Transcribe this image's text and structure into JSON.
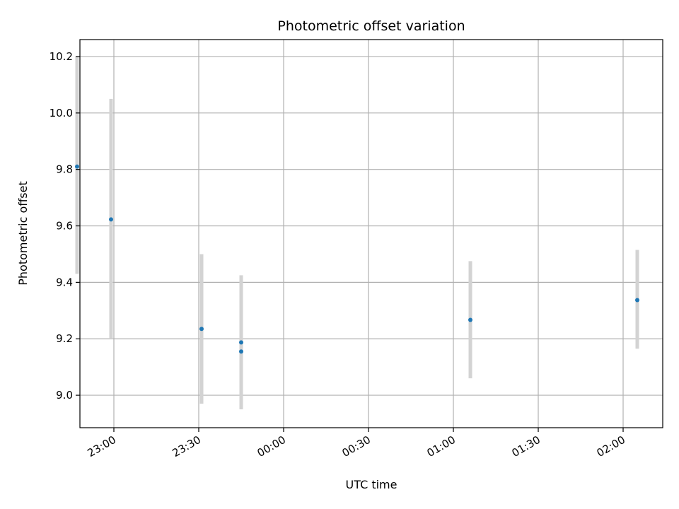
{
  "chart_data": {
    "type": "scatter",
    "title": "Photometric offset variation",
    "xlabel": "UTC time",
    "ylabel": "Photometric offset",
    "x_axis_kind": "time",
    "xlim": [
      "22:48",
      "02:14"
    ],
    "ylim": [
      8.885,
      10.26
    ],
    "x_ticks": [
      "23:00",
      "23:30",
      "00:00",
      "00:30",
      "01:00",
      "01:30",
      "02:00"
    ],
    "y_ticks": [
      9.0,
      9.2,
      9.4,
      9.6,
      9.8,
      10.0,
      10.2
    ],
    "y_tick_labels": [
      "9.0",
      "9.2",
      "9.4",
      "9.6",
      "9.8",
      "10.0",
      "10.2"
    ],
    "grid": true,
    "marker_color": "#1f77b4",
    "errorbar_color": "#d3d3d3",
    "points": [
      {
        "x": "22:47",
        "y": 9.81,
        "err_low": 9.43,
        "err_high": 10.2
      },
      {
        "x": "22:59",
        "y": 9.623,
        "err_low": 9.2,
        "err_high": 10.05
      },
      {
        "x": "23:31",
        "y": 9.235,
        "err_low": 8.97,
        "err_high": 9.5
      },
      {
        "x": "23:45",
        "y": 9.187,
        "err_low": 8.95,
        "err_high": 9.425
      },
      {
        "x": "23:45",
        "y": 9.155,
        "err_low": 8.95,
        "err_high": 9.42
      },
      {
        "x": "01:06",
        "y": 9.267,
        "err_low": 9.06,
        "err_high": 9.475
      },
      {
        "x": "02:05",
        "y": 9.337,
        "err_low": 9.165,
        "err_high": 9.515
      }
    ]
  }
}
